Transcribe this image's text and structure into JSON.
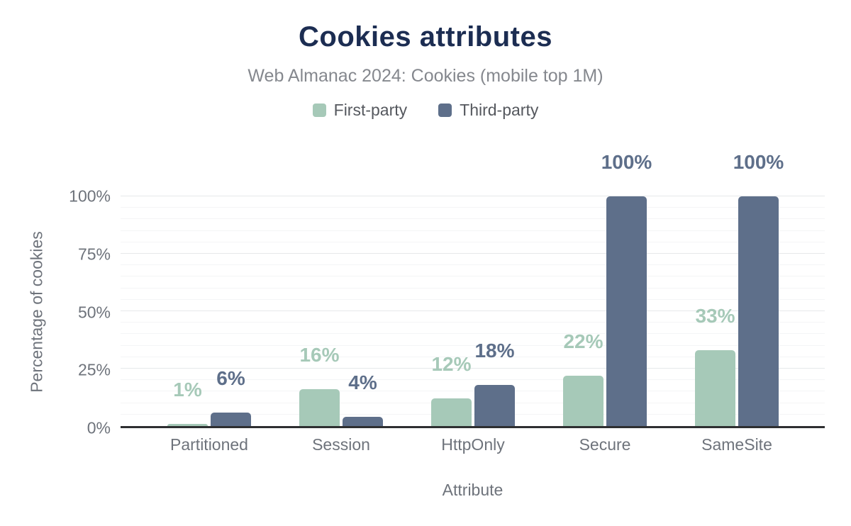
{
  "title": "Cookies attributes",
  "subtitle": "Web Almanac 2024: Cookies (mobile top 1M)",
  "legend": [
    {
      "label": "First-party",
      "color": "#a6c9b8"
    },
    {
      "label": "Third-party",
      "color": "#5e6f8a"
    }
  ],
  "chart_data": {
    "type": "bar",
    "title": "Cookies attributes",
    "subtitle": "Web Almanac 2024: Cookies (mobile top 1M)",
    "categories": [
      "Partitioned",
      "Session",
      "HttpOnly",
      "Secure",
      "SameSite"
    ],
    "series": [
      {
        "name": "First-party",
        "color": "#a6c9b8",
        "values": [
          1,
          16,
          12,
          22,
          33
        ],
        "labels": [
          "1%",
          "16%",
          "12%",
          "22%",
          "33%"
        ]
      },
      {
        "name": "Third-party",
        "color": "#5e6f8a",
        "values": [
          6,
          4,
          18,
          100,
          100
        ],
        "labels": [
          "6%",
          "4%",
          "18%",
          "100%",
          "100%"
        ]
      }
    ],
    "xlabel": "Attribute",
    "ylabel": "Percentage of cookies",
    "ylim": [
      0,
      100
    ],
    "yticks": [
      {
        "value": 0,
        "label": "0%"
      },
      {
        "value": 25,
        "label": "25%"
      },
      {
        "value": 50,
        "label": "50%"
      },
      {
        "value": 75,
        "label": "75%"
      },
      {
        "value": 100,
        "label": "100%"
      }
    ],
    "grid": {
      "minor_step": 5,
      "major_step": 25,
      "orientation": "horizontal"
    },
    "legend_position": "top"
  },
  "colors": {
    "title": "#1c2d52",
    "subtitle": "#85888e",
    "axis_text": "#6e737b",
    "legend_text": "#55585e",
    "axis_line": "#2e2f31",
    "grid_minor": "#f4f5f6",
    "grid_major": "#e6e8ea",
    "background": "#ffffff"
  }
}
